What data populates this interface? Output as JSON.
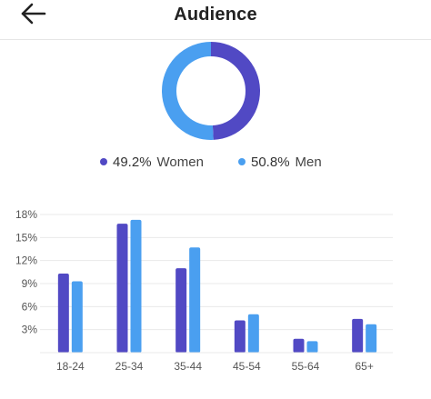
{
  "header": {
    "title": "Audience",
    "back_icon": "arrow-left-icon"
  },
  "colors": {
    "women": "#5149c4",
    "men": "#4a9ff0",
    "grid": "#e9e9e9",
    "tick_text": "#555555"
  },
  "gender": {
    "women": {
      "pct_label": "49.2%",
      "label": "Women",
      "value": 49.2
    },
    "men": {
      "pct_label": "50.8%",
      "label": "Men",
      "value": 50.8
    }
  },
  "chart_data": [
    {
      "type": "pie",
      "categories": [
        "Women",
        "Men"
      ],
      "values": [
        49.2,
        50.8
      ],
      "donut": true,
      "legend": "bottom"
    },
    {
      "type": "bar",
      "categories": [
        "18-24",
        "25-34",
        "35-44",
        "45-54",
        "55-64",
        "65+"
      ],
      "series": [
        {
          "name": "Women",
          "values": [
            10.3,
            16.8,
            11.0,
            4.2,
            1.8,
            4.4
          ]
        },
        {
          "name": "Men",
          "values": [
            9.3,
            17.3,
            13.7,
            5.0,
            1.5,
            3.7
          ]
        }
      ],
      "yticks": [
        "3%",
        "6%",
        "9%",
        "12%",
        "15%",
        "18%"
      ],
      "ytick_values": [
        3,
        6,
        9,
        12,
        15,
        18
      ],
      "ylim": [
        0,
        18
      ],
      "grid": true
    }
  ]
}
